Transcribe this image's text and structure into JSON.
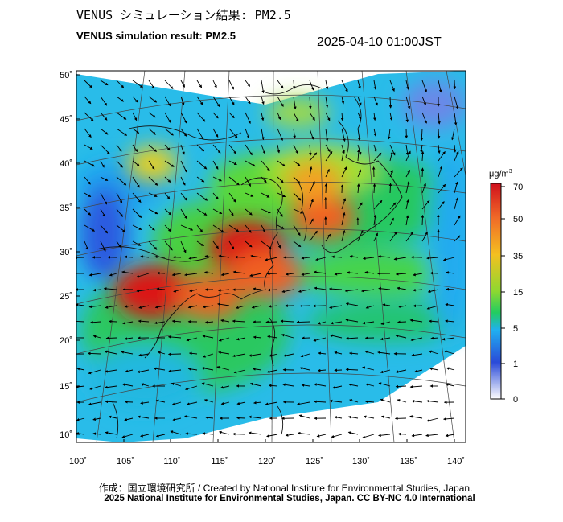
{
  "header": {
    "title_jp": "VENUS シミュレーション結果: PM2.5",
    "title_en": "VENUS simulation result: PM2.5",
    "timestamp": "2025-04-10 01:00JST"
  },
  "map": {
    "lon_ticks": [
      "100˚",
      "105˚",
      "110˚",
      "115˚",
      "120˚",
      "125˚",
      "130˚",
      "135˚",
      "140˚"
    ],
    "lat_ticks": [
      "50˚",
      "45˚",
      "40˚",
      "35˚",
      "30˚",
      "25˚",
      "20˚",
      "15˚",
      "10˚"
    ],
    "lon_range": [
      100,
      141
    ],
    "lat_range": [
      9,
      51
    ],
    "field": "PM2.5 concentration",
    "hotspots": [
      {
        "lon": 108,
        "lat": 26,
        "level": 70
      },
      {
        "lon": 114,
        "lat": 25.5,
        "level": 55
      },
      {
        "lon": 118,
        "lat": 31,
        "level": 70
      },
      {
        "lon": 120,
        "lat": 28,
        "level": 60
      },
      {
        "lon": 126,
        "lat": 34.5,
        "level": 50
      },
      {
        "lon": 125,
        "lat": 38.5,
        "level": 40
      },
      {
        "lon": 108,
        "lat": 40.5,
        "level": 30
      }
    ]
  },
  "legend": {
    "unit_base": "μg/m",
    "unit_exp": "3",
    "labels": [
      "70",
      "50",
      "35",
      "15",
      "5",
      "1",
      "0"
    ],
    "colors": [
      "#d7191c",
      "#f07c28",
      "#f0c020",
      "#8ed830",
      "#22cc60",
      "#20aaf0",
      "#2a4ad8",
      "#ffffff"
    ]
  },
  "footer": {
    "credit_line1": "作成：国立環境研究所 / Created by National Institute for Environmental Studies, Japan.",
    "credit_line2": "2025 National Institute for Environmental Studies, Japan. CC BY-NC 4.0 International"
  }
}
